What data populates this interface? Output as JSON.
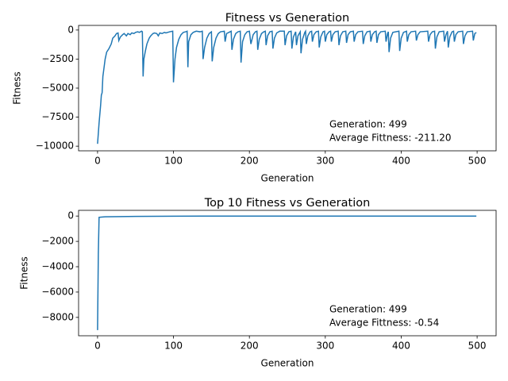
{
  "chart_data": [
    {
      "type": "line",
      "title": "Fitness vs Generation",
      "x_label": "Generation",
      "y_label": "Fitness",
      "annotations": [
        "Generation: 499",
        "Average Fittness: -211.20"
      ],
      "x": [
        0,
        2,
        4,
        5,
        6,
        7,
        8,
        10,
        12,
        15,
        18,
        20,
        23,
        25,
        27,
        28,
        30,
        33,
        35,
        38,
        40,
        43,
        45,
        48,
        50,
        53,
        55,
        58,
        59,
        60,
        61,
        63,
        65,
        68,
        70,
        73,
        75,
        78,
        80,
        82,
        85,
        88,
        90,
        95,
        99,
        100,
        102,
        104,
        107,
        110,
        113,
        116,
        118,
        119,
        120,
        123,
        126,
        130,
        135,
        138,
        139,
        141,
        144,
        147,
        150,
        151,
        153,
        156,
        159,
        162,
        167,
        168,
        170,
        173,
        176,
        177,
        179,
        182,
        185,
        188,
        189,
        191,
        194,
        197,
        200,
        202,
        205,
        208,
        210,
        211,
        213,
        216,
        219,
        221,
        222,
        224,
        227,
        230,
        231,
        233,
        236,
        240,
        246,
        247,
        249,
        252,
        255,
        256,
        258,
        261,
        262,
        264,
        267,
        268,
        270,
        273,
        274,
        275,
        277,
        280,
        282,
        283,
        285,
        288,
        291,
        292,
        294,
        297,
        299,
        300,
        302,
        305,
        307,
        308,
        310,
        313,
        317,
        318,
        320,
        323,
        327,
        328,
        330,
        333,
        337,
        338,
        340,
        343,
        349,
        350,
        352,
        355,
        359,
        360,
        362,
        365,
        367,
        368,
        370,
        373,
        379,
        380,
        382,
        383,
        384,
        386,
        389,
        397,
        398,
        400,
        403,
        407,
        408,
        410,
        413,
        419,
        420,
        422,
        425,
        435,
        436,
        438,
        441,
        444,
        445,
        447,
        450,
        456,
        457,
        459,
        461,
        462,
        464,
        467,
        469,
        470,
        472,
        475,
        481,
        482,
        484,
        487,
        494,
        495,
        497,
        499
      ],
      "series": [
        {
          "name": "Fitness",
          "color": "#1f77b4",
          "values": [
            -9800,
            -8000,
            -6500,
            -5600,
            -5400,
            -4000,
            -3500,
            -2500,
            -1900,
            -1600,
            -1200,
            -700,
            -500,
            -300,
            -250,
            -900,
            -600,
            -400,
            -300,
            -500,
            -300,
            -400,
            -250,
            -300,
            -200,
            -150,
            -200,
            -100,
            -150,
            -4000,
            -2500,
            -1800,
            -1200,
            -700,
            -500,
            -300,
            -250,
            -300,
            -500,
            -250,
            -300,
            -200,
            -250,
            -150,
            -100,
            -4500,
            -2500,
            -1500,
            -800,
            -400,
            -200,
            -150,
            -100,
            -3200,
            -1000,
            -400,
            -200,
            -100,
            -150,
            -100,
            -2500,
            -1500,
            -700,
            -300,
            -150,
            -2700,
            -1500,
            -700,
            -300,
            -150,
            -100,
            -1000,
            -300,
            -200,
            -100,
            -1700,
            -800,
            -300,
            -150,
            -100,
            -2800,
            -1000,
            -400,
            -150,
            -100,
            -1200,
            -400,
            -150,
            -100,
            -1700,
            -800,
            -300,
            -150,
            -100,
            -1300,
            -500,
            -150,
            -100,
            -1600,
            -700,
            -250,
            -100,
            -100,
            -1300,
            -500,
            -150,
            -100,
            -1600,
            -600,
            -150,
            -1300,
            -500,
            -150,
            -2000,
            -800,
            -200,
            -100,
            -1200,
            -500,
            -150,
            -100,
            -1000,
            -400,
            -150,
            -100,
            -1500,
            -600,
            -150,
            -100,
            -1000,
            -400,
            -150,
            -100,
            -1000,
            -400,
            -150,
            -100,
            -1300,
            -500,
            -150,
            -100,
            -1100,
            -400,
            -150,
            -100,
            -1000,
            -400,
            -150,
            -100,
            -1200,
            -500,
            -150,
            -100,
            -1000,
            -400,
            -150,
            -100,
            -1100,
            -400,
            -150,
            -100,
            -1000,
            -300,
            -150,
            -1900,
            -700,
            -200,
            -100,
            -1800,
            -700,
            -200,
            -100,
            -1000,
            -400,
            -150,
            -100,
            -900,
            -400,
            -150,
            -100,
            -1000,
            -400,
            -150,
            -100,
            -1600,
            -600,
            -150,
            -100,
            -1000,
            -400,
            -100,
            -1500,
            -600,
            -150,
            -100,
            -1000,
            -400,
            -150,
            -100,
            -1200,
            -500,
            -150,
            -100,
            -900,
            -300,
            -211.2
          ]
        }
      ],
      "xlim": [
        -25,
        525
      ],
      "xticks": [
        0,
        100,
        200,
        300,
        400,
        500
      ],
      "ylim": [
        -10400,
        400
      ],
      "yticks": [
        {
          "value": 0,
          "label": "0"
        },
        {
          "value": -2500,
          "label": "−2500"
        },
        {
          "value": -5000,
          "label": "−5000"
        },
        {
          "value": -7500,
          "label": "−7500"
        },
        {
          "value": -10000,
          "label": "−10000"
        }
      ]
    },
    {
      "type": "line",
      "title": "Top 10 Fitness vs Generation",
      "x_label": "Generation",
      "y_label": "Fitness",
      "annotations": [
        "Generation: 499",
        "Average Fittness: -0.54"
      ],
      "x": [
        0,
        1,
        2,
        5,
        10,
        50,
        100,
        200,
        300,
        400,
        499
      ],
      "series": [
        {
          "name": "Top 10 Fitness",
          "color": "#1f77b4",
          "values": [
            -9000,
            -3000,
            -100,
            -80,
            -60,
            -30,
            -10,
            -5,
            -2,
            -1,
            -0.54
          ]
        }
      ],
      "xlim": [
        -25,
        525
      ],
      "xticks": [
        0,
        100,
        200,
        300,
        400,
        500
      ],
      "ylim": [
        -9450,
        450
      ],
      "yticks": [
        {
          "value": 0,
          "label": "0"
        },
        {
          "value": -2000,
          "label": "−2000"
        },
        {
          "value": -4000,
          "label": "−4000"
        },
        {
          "value": -6000,
          "label": "−6000"
        },
        {
          "value": -8000,
          "label": "−8000"
        }
      ]
    }
  ]
}
